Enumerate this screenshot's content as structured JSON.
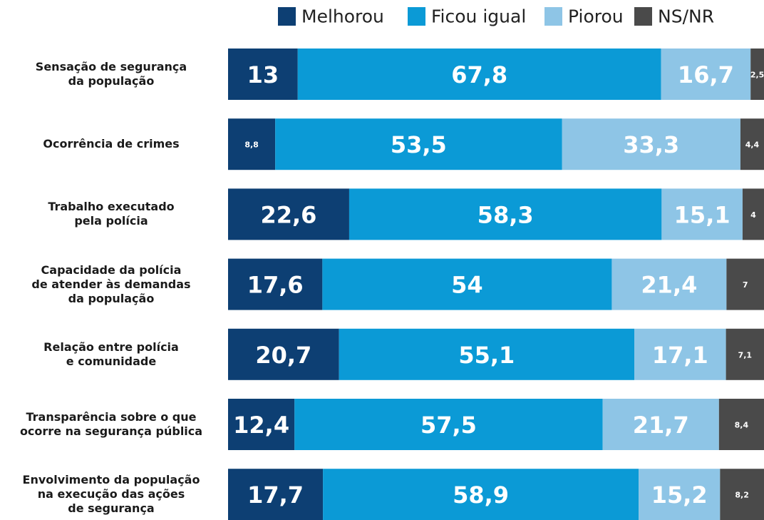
{
  "chart_data": {
    "type": "stacked-bar-horizontal",
    "legend": "top",
    "xlim": [
      0,
      100
    ],
    "categories": [
      "Sensação de segurança\nda população",
      "Ocorrência de crimes",
      "Trabalho executado\npela polícia",
      "Capacidade da polícia\nde atender às demandas\nda população",
      "Relação entre polícia\ne comunidade",
      "Transparência sobre o que\nocorre na segurança pública",
      "Envolvimento da população\nna execução das ações\nde segurança"
    ],
    "series": [
      {
        "name": "Melhorou",
        "color": "#0d3f73",
        "values": [
          13,
          8.8,
          22.6,
          17.6,
          20.7,
          12.4,
          17.7
        ],
        "value_labels": [
          "13",
          "8,8",
          "22,6",
          "17,6",
          "20,7",
          "12,4",
          "17,7"
        ]
      },
      {
        "name": "Ficou igual",
        "color": "#0b9ad6",
        "values": [
          67.8,
          53.5,
          58.3,
          54,
          55.1,
          57.5,
          58.9
        ],
        "value_labels": [
          "67,8",
          "53,5",
          "58,3",
          "54",
          "55,1",
          "57,5",
          "58,9"
        ]
      },
      {
        "name": "Piorou",
        "color": "#8ec5e6",
        "values": [
          16.7,
          33.3,
          15.1,
          21.4,
          17.1,
          21.7,
          15.2
        ],
        "value_labels": [
          "16,7",
          "33,3",
          "15,1",
          "21,4",
          "17,1",
          "21,7",
          "15,2"
        ]
      },
      {
        "name": "NS/NR",
        "color": "#4a4a4a",
        "values": [
          2.5,
          4.4,
          4,
          7,
          7.1,
          8.4,
          8.2
        ],
        "value_labels": [
          "2,5",
          "4,4",
          "4",
          "7",
          "7,1",
          "8,4",
          "8,2"
        ]
      }
    ]
  }
}
